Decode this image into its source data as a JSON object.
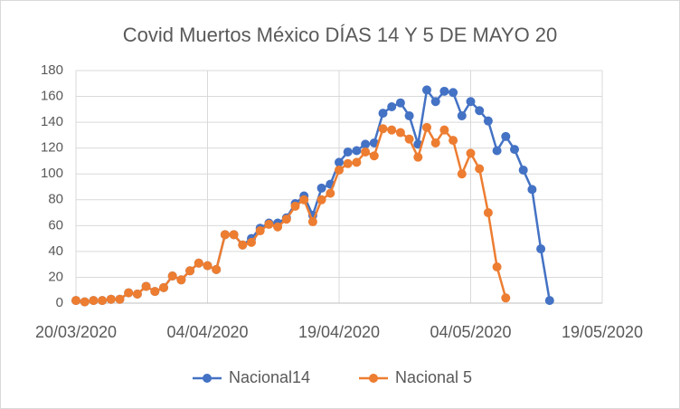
{
  "chart_data": {
    "type": "line",
    "title": "Covid Muertos México DÍAS 14 Y 5 DE MAYO 20",
    "x": [
      "20/03/2020",
      "21/03/2020",
      "22/03/2020",
      "23/03/2020",
      "24/03/2020",
      "25/03/2020",
      "26/03/2020",
      "27/03/2020",
      "28/03/2020",
      "29/03/2020",
      "30/03/2020",
      "31/03/2020",
      "01/04/2020",
      "02/04/2020",
      "03/04/2020",
      "04/04/2020",
      "05/04/2020",
      "06/04/2020",
      "07/04/2020",
      "08/04/2020",
      "09/04/2020",
      "10/04/2020",
      "11/04/2020",
      "12/04/2020",
      "13/04/2020",
      "14/04/2020",
      "15/04/2020",
      "16/04/2020",
      "17/04/2020",
      "18/04/2020",
      "19/04/2020",
      "20/04/2020",
      "21/04/2020",
      "22/04/2020",
      "23/04/2020",
      "24/04/2020",
      "25/04/2020",
      "26/04/2020",
      "27/04/2020",
      "28/04/2020",
      "29/04/2020",
      "30/04/2020",
      "01/05/2020",
      "02/05/2020",
      "03/05/2020",
      "04/05/2020",
      "05/05/2020",
      "06/05/2020",
      "07/05/2020",
      "08/05/2020",
      "09/05/2020",
      "10/05/2020",
      "11/05/2020",
      "12/05/2020",
      "13/05/2020"
    ],
    "series": [
      {
        "name": "Nacional14",
        "color": "#4472c4",
        "values": [
          2,
          1,
          2,
          2,
          3,
          3,
          8,
          7,
          13,
          9,
          12,
          21,
          18,
          25,
          31,
          29,
          26,
          53,
          53,
          45,
          50,
          58,
          62,
          62,
          66,
          77,
          83,
          68,
          89,
          92,
          109,
          117,
          118,
          123,
          124,
          147,
          152,
          155,
          145,
          123,
          165,
          156,
          164,
          163,
          145,
          156,
          149,
          141,
          118,
          129,
          119,
          103,
          88,
          42,
          2
        ]
      },
      {
        "name": "Nacional 5",
        "color": "#ed7d31",
        "values": [
          2,
          1,
          2,
          2,
          3,
          3,
          8,
          7,
          13,
          9,
          12,
          21,
          18,
          25,
          31,
          29,
          26,
          53,
          53,
          45,
          47,
          56,
          61,
          59,
          65,
          75,
          80,
          63,
          80,
          85,
          103,
          108,
          109,
          117,
          114,
          135,
          134,
          132,
          127,
          113,
          136,
          124,
          134,
          126,
          100,
          116,
          104,
          70,
          28,
          4,
          null,
          null,
          null,
          null,
          null
        ]
      }
    ],
    "xlim": [
      "20/03/2020",
      "19/05/2020"
    ],
    "xticks": [
      "20/03/2020",
      "04/04/2020",
      "19/04/2020",
      "04/05/2020",
      "19/05/2020"
    ],
    "ylim": [
      0,
      180
    ],
    "yticks": [
      0,
      20,
      40,
      60,
      80,
      100,
      120,
      140,
      160,
      180
    ],
    "grid": true,
    "legend": "bottom"
  }
}
